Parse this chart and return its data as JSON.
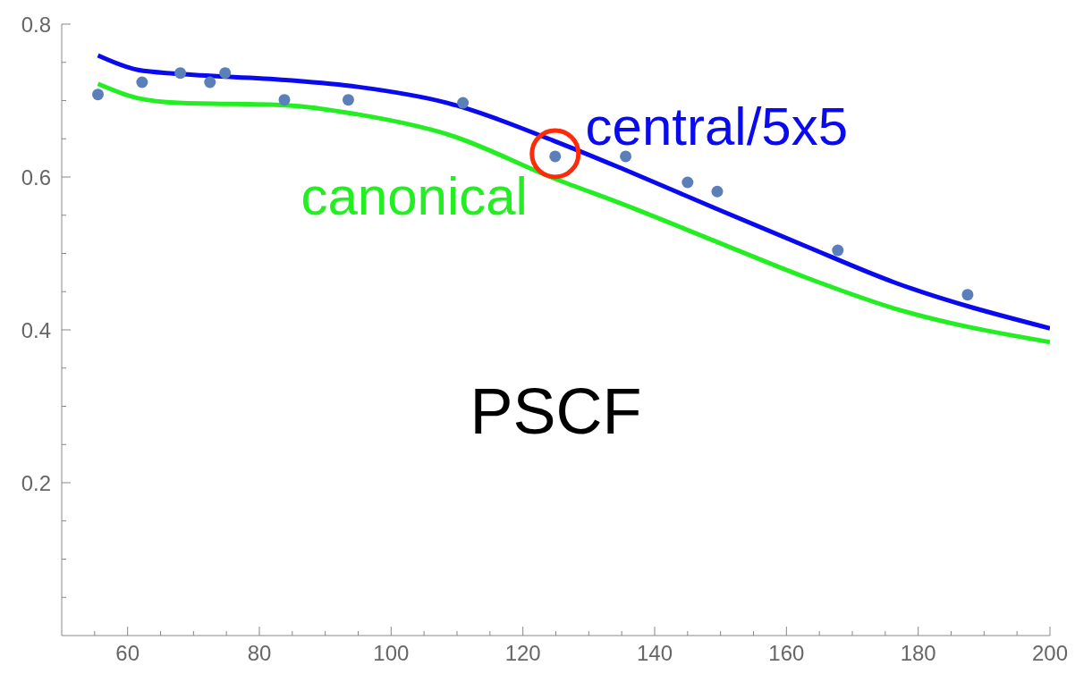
{
  "chart_data": {
    "type": "scatter",
    "series": [
      {
        "marker": "circle",
        "color": "#5b7fb8",
        "x": [
          55.5,
          62.2,
          68.0,
          72.5,
          74.8,
          83.8,
          93.5,
          110.9,
          124.9,
          135.6,
          145.0,
          149.5,
          167.8,
          187.5
        ],
        "values": [
          0.708,
          0.724,
          0.736,
          0.724,
          0.736,
          0.701,
          0.701,
          0.697,
          0.627,
          0.627,
          0.593,
          0.581,
          0.504,
          0.446
        ]
      },
      {
        "type": "line",
        "name": "central/5x5",
        "color": "#0a0aee",
        "x": [
          55.5,
          61.6,
          67.7,
          84,
          94.9,
          108.5,
          124.8,
          135.6,
          149.2,
          162.8,
          176.4,
          200
        ],
        "values": [
          0.759,
          0.74,
          0.735,
          0.727,
          0.718,
          0.697,
          0.647,
          0.609,
          0.559,
          0.51,
          0.462,
          0.402
        ]
      },
      {
        "type": "line",
        "name": "canonical",
        "color": "#22ee22",
        "x": [
          55.5,
          61.6,
          67.7,
          84,
          94.9,
          108.5,
          124.8,
          135.6,
          149.2,
          162.8,
          176.4,
          200
        ],
        "values": [
          0.722,
          0.703,
          0.697,
          0.694,
          0.682,
          0.656,
          0.598,
          0.563,
          0.516,
          0.469,
          0.428,
          0.384
        ]
      }
    ],
    "annotations": [
      "PSCF"
    ],
    "xlim": [
      50,
      200
    ],
    "xticks": [
      {
        "value": 55,
        "label": null
      },
      60,
      {
        "value": 65,
        "label": null
      },
      {
        "value": 70,
        "label": null
      },
      {
        "value": 75,
        "label": null
      },
      80,
      {
        "value": 85,
        "label": null
      },
      {
        "value": 90,
        "label": null
      },
      {
        "value": 95,
        "label": null
      },
      100,
      {
        "value": 105,
        "label": null
      },
      {
        "value": 110,
        "label": null
      },
      {
        "value": 115,
        "label": null
      },
      120,
      {
        "value": 125,
        "label": null
      },
      {
        "value": 130,
        "label": null
      },
      {
        "value": 135,
        "label": null
      },
      140,
      {
        "value": 145,
        "label": null
      },
      {
        "value": 150,
        "label": null
      },
      {
        "value": 155,
        "label": null
      },
      160,
      {
        "value": 165,
        "label": null
      },
      {
        "value": 170,
        "label": null
      },
      {
        "value": 175,
        "label": null
      },
      180,
      {
        "value": 185,
        "label": null
      },
      {
        "value": 190,
        "label": null
      },
      {
        "value": 195,
        "label": null
      },
      200
    ],
    "ylim": [
      0,
      0.8
    ],
    "yticks": [
      {
        "value": 0.05,
        "label": null
      },
      {
        "value": 0.1,
        "label": null
      },
      {
        "value": 0.15,
        "label": null
      },
      0.2,
      {
        "value": 0.25,
        "label": null
      },
      {
        "value": 0.3,
        "label": null
      },
      {
        "value": 0.35,
        "label": null
      },
      0.4,
      {
        "value": 0.45,
        "label": null
      },
      {
        "value": 0.5,
        "label": null
      },
      {
        "value": 0.55,
        "label": null
      },
      0.6,
      {
        "value": 0.65,
        "label": null
      },
      {
        "value": 0.7,
        "label": null
      },
      {
        "value": 0.75,
        "label": null
      },
      0.8
    ],
    "grid": false,
    "legend": false
  }
}
